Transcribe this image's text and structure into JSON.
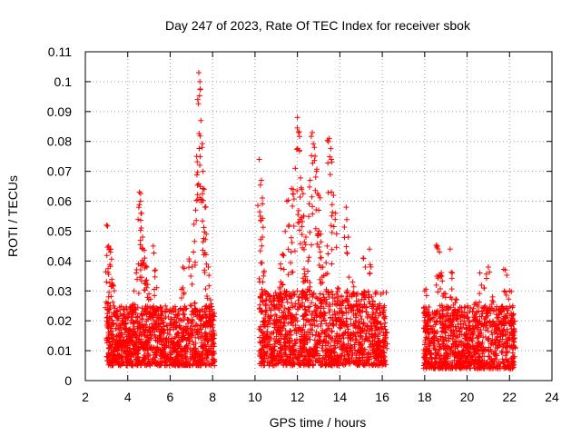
{
  "chart_data": {
    "type": "scatter",
    "title": "Day 247 of 2023, Rate Of TEC Index for receiver sbok",
    "xlabel": "GPS time / hours",
    "ylabel": "ROTI / TECUs",
    "xlim": [
      2,
      24
    ],
    "ylim": [
      0,
      0.11
    ],
    "x_ticks": [
      "2",
      "4",
      "6",
      "8",
      "10",
      "12",
      "14",
      "16",
      "18",
      "20",
      "22",
      "24"
    ],
    "y_ticks": [
      "0",
      "0.01",
      "0.02",
      "0.03",
      "0.04",
      "0.05",
      "0.06",
      "0.07",
      "0.08",
      "0.09",
      "0.1",
      "0.11"
    ],
    "grid": true,
    "marker": "+",
    "color": "#ff0000",
    "series": [
      {
        "points": [
          [
            3.0,
            0.052
          ],
          [
            3.1,
            0.045
          ],
          [
            3.2,
            0.044
          ],
          [
            3.0,
            0.033
          ],
          [
            3.3,
            0.032
          ],
          [
            3.1,
            0.028
          ],
          [
            3.05,
            0.021
          ],
          [
            3.2,
            0.018
          ],
          [
            3.3,
            0.014
          ],
          [
            3.4,
            0.011
          ],
          [
            3.1,
            0.009
          ],
          [
            3.5,
            0.008
          ],
          [
            3.6,
            0.012
          ],
          [
            3.7,
            0.016
          ],
          [
            3.8,
            0.02
          ],
          [
            3.9,
            0.013
          ],
          [
            4.0,
            0.01
          ],
          [
            4.1,
            0.017
          ],
          [
            4.2,
            0.025
          ],
          [
            4.3,
            0.03
          ],
          [
            4.4,
            0.036
          ],
          [
            4.5,
            0.039
          ],
          [
            4.55,
            0.063
          ],
          [
            4.6,
            0.06
          ],
          [
            4.65,
            0.056
          ],
          [
            4.7,
            0.048
          ],
          [
            4.8,
            0.041
          ],
          [
            4.9,
            0.038
          ],
          [
            5.0,
            0.029
          ],
          [
            5.1,
            0.022
          ],
          [
            5.2,
            0.045
          ],
          [
            5.3,
            0.037
          ],
          [
            5.4,
            0.024
          ],
          [
            5.5,
            0.018
          ],
          [
            5.6,
            0.012
          ],
          [
            5.8,
            0.009
          ],
          [
            6.0,
            0.011
          ],
          [
            6.2,
            0.014
          ],
          [
            6.3,
            0.01
          ],
          [
            6.5,
            0.013
          ],
          [
            6.6,
            0.038
          ],
          [
            6.7,
            0.021
          ],
          [
            6.8,
            0.017
          ],
          [
            6.9,
            0.04
          ],
          [
            7.0,
            0.025
          ],
          [
            7.1,
            0.043
          ],
          [
            7.2,
            0.057
          ],
          [
            7.25,
            0.075
          ],
          [
            7.3,
            0.094
          ],
          [
            7.35,
            0.103
          ],
          [
            7.4,
            0.1
          ],
          [
            7.45,
            0.087
          ],
          [
            7.5,
            0.078
          ],
          [
            7.55,
            0.07
          ],
          [
            7.6,
            0.064
          ],
          [
            7.65,
            0.058
          ],
          [
            7.7,
            0.049
          ],
          [
            7.8,
            0.038
          ],
          [
            7.9,
            0.027
          ],
          [
            8.0,
            0.015
          ],
          [
            8.05,
            0.009
          ],
          [
            10.2,
            0.074
          ],
          [
            10.3,
            0.067
          ],
          [
            10.25,
            0.055
          ],
          [
            10.35,
            0.048
          ],
          [
            10.4,
            0.035
          ],
          [
            10.5,
            0.025
          ],
          [
            10.6,
            0.018
          ],
          [
            10.7,
            0.012
          ],
          [
            10.8,
            0.009
          ],
          [
            10.9,
            0.014
          ],
          [
            11.0,
            0.02
          ],
          [
            11.1,
            0.028
          ],
          [
            11.2,
            0.039
          ],
          [
            11.3,
            0.042
          ],
          [
            11.4,
            0.03
          ],
          [
            11.5,
            0.06
          ],
          [
            11.6,
            0.052
          ],
          [
            11.7,
            0.043
          ],
          [
            11.8,
            0.064
          ],
          [
            11.9,
            0.071
          ],
          [
            12.0,
            0.088
          ],
          [
            12.05,
            0.083
          ],
          [
            12.1,
            0.077
          ],
          [
            12.2,
            0.064
          ],
          [
            12.3,
            0.055
          ],
          [
            12.4,
            0.048
          ],
          [
            12.5,
            0.04
          ],
          [
            12.6,
            0.067
          ],
          [
            12.7,
            0.083
          ],
          [
            12.8,
            0.078
          ],
          [
            12.9,
            0.07
          ],
          [
            13.0,
            0.062
          ],
          [
            13.1,
            0.049
          ],
          [
            13.2,
            0.038
          ],
          [
            13.3,
            0.027
          ],
          [
            13.4,
            0.045
          ],
          [
            13.5,
            0.081
          ],
          [
            13.6,
            0.074
          ],
          [
            13.7,
            0.062
          ],
          [
            13.8,
            0.056
          ],
          [
            13.9,
            0.031
          ],
          [
            14.0,
            0.02
          ],
          [
            14.2,
            0.016
          ],
          [
            14.3,
            0.058
          ],
          [
            14.4,
            0.048
          ],
          [
            14.6,
            0.033
          ],
          [
            14.8,
            0.025
          ],
          [
            15.0,
            0.015
          ],
          [
            15.1,
            0.041
          ],
          [
            15.2,
            0.038
          ],
          [
            15.4,
            0.044
          ],
          [
            15.5,
            0.028
          ],
          [
            15.7,
            0.021
          ],
          [
            15.8,
            0.013
          ],
          [
            16.0,
            0.01
          ],
          [
            16.1,
            0.025
          ],
          [
            16.15,
            0.016
          ],
          [
            18.0,
            0.03
          ],
          [
            18.2,
            0.022
          ],
          [
            18.4,
            0.018
          ],
          [
            18.6,
            0.045
          ],
          [
            18.7,
            0.043
          ],
          [
            18.8,
            0.035
          ],
          [
            18.9,
            0.029
          ],
          [
            19.0,
            0.024
          ],
          [
            19.2,
            0.044
          ],
          [
            19.3,
            0.036
          ],
          [
            19.5,
            0.027
          ],
          [
            19.7,
            0.019
          ],
          [
            19.9,
            0.014
          ],
          [
            20.0,
            0.012
          ],
          [
            20.2,
            0.016
          ],
          [
            20.4,
            0.026
          ],
          [
            20.6,
            0.036
          ],
          [
            20.8,
            0.031
          ],
          [
            21.0,
            0.038
          ],
          [
            21.2,
            0.028
          ],
          [
            21.4,
            0.021
          ],
          [
            21.6,
            0.016
          ],
          [
            21.8,
            0.037
          ],
          [
            22.0,
            0.03
          ],
          [
            22.1,
            0.022
          ],
          [
            22.2,
            0.017
          ]
        ],
        "dense_bands": [
          {
            "x": [
              3.0,
              8.1
            ],
            "y": [
              0.005,
              0.025
            ]
          },
          {
            "x": [
              10.2,
              16.2
            ],
            "y": [
              0.005,
              0.03
            ]
          },
          {
            "x": [
              17.95,
              22.25
            ],
            "y": [
              0.004,
              0.025
            ]
          }
        ]
      }
    ]
  }
}
